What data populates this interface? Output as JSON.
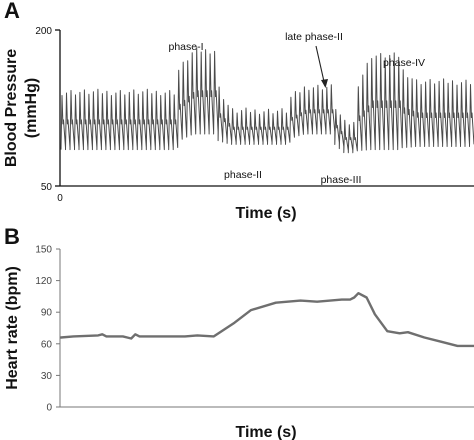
{
  "chart_data": [
    {
      "type": "line",
      "panel_label": "A",
      "xlabel": "Time (s)",
      "ylabel": "Blood Pressure (mmHg)",
      "ylabel_line1": "Blood Pressure",
      "ylabel_line2": "(mmHg)",
      "ylim": [
        50,
        200
      ],
      "y_ticks": [
        "200",
        "50"
      ],
      "x_ticks": [
        "0"
      ],
      "grid": false,
      "annotations": [
        {
          "text": "phase-I",
          "time": 0.31
        },
        {
          "text": "late phase-II",
          "time": 0.63,
          "arrow": true
        },
        {
          "text": "phase-II",
          "time": 0.46
        },
        {
          "text": "phase-III",
          "time": 0.68
        },
        {
          "text": "phase-IV",
          "time": 0.85
        }
      ],
      "segments": [
        {
          "from": 0.0,
          "to": 0.28,
          "systolic": 140,
          "diastolic": 85
        },
        {
          "from": 0.28,
          "to": 0.37,
          "systolic": 180,
          "diastolic": 100
        },
        {
          "from": 0.37,
          "to": 0.55,
          "systolic": 122,
          "diastolic": 90
        },
        {
          "from": 0.55,
          "to": 0.66,
          "systolic": 145,
          "diastolic": 100
        },
        {
          "from": 0.66,
          "to": 0.71,
          "systolic": 110,
          "diastolic": 82
        },
        {
          "from": 0.71,
          "to": 0.82,
          "systolic": 175,
          "diastolic": 85
        },
        {
          "from": 0.82,
          "to": 1.0,
          "systolic": 150,
          "diastolic": 88
        }
      ]
    },
    {
      "type": "line",
      "panel_label": "B",
      "xlabel": "Time (s)",
      "ylabel": "Heart rate (bpm)",
      "ylim": [
        0,
        150
      ],
      "y_ticks": [
        0,
        30,
        60,
        90,
        120,
        150
      ],
      "grid": false,
      "series": [
        {
          "x": [
            0.0,
            0.03,
            0.09,
            0.1,
            0.11,
            0.15,
            0.17,
            0.18,
            0.19,
            0.3,
            0.33,
            0.37,
            0.42,
            0.46,
            0.52,
            0.58,
            0.62,
            0.68,
            0.7,
            0.71,
            0.72,
            0.74,
            0.76,
            0.79,
            0.82,
            0.84,
            0.88,
            0.92,
            0.96,
            1.0
          ],
          "y": [
            66,
            67,
            68,
            69,
            67,
            67,
            65,
            69,
            67,
            67,
            68,
            67,
            80,
            92,
            99,
            101,
            100,
            102,
            102,
            104,
            108,
            104,
            88,
            72,
            70,
            71,
            66,
            62,
            58,
            58
          ]
        }
      ]
    }
  ]
}
